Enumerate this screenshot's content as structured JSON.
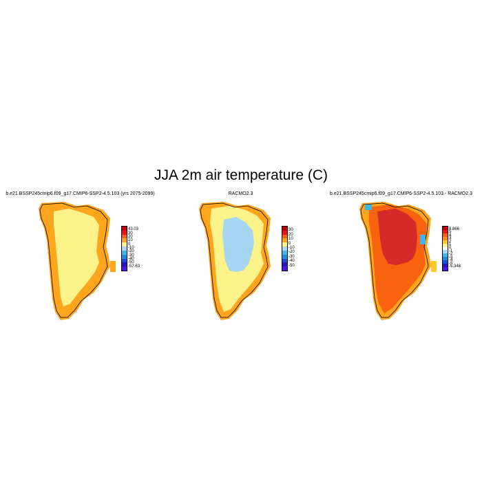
{
  "title": "JJA 2m air temperature (C)",
  "colors": {
    "land_mean": "#fbf28a",
    "coastal_band": "#fda51c",
    "ice_interior_racmo": "#a6d6f2",
    "diff_interior": "#d62a2a",
    "coastline": "#000000"
  },
  "panels": [
    {
      "id": "model",
      "title": "b.e21.BSSP245cmip6.f09_g17.CMIP6-SSP2-4.5.103 (yrs 2075-2099)",
      "colorbar": {
        "colors": [
          "#c00000",
          "#e8141b",
          "#f9620f",
          "#fda51c",
          "#fbf28a",
          "#a6d6f2",
          "#41b5ea",
          "#1e8ee0",
          "#1a4fd6",
          "#2a16b8",
          "#5512e0"
        ],
        "labels": [
          "43.03",
          "30",
          "20",
          "10",
          "0",
          "-10",
          "-20",
          "-30",
          "-40",
          "-50",
          "-57.63"
        ]
      }
    },
    {
      "id": "racmo",
      "title": "RACMO2.3",
      "colorbar": {
        "colors": [
          "#c00000",
          "#e8141b",
          "#f9620f",
          "#fda51c",
          "#fbf28a",
          "#a6d6f2",
          "#41b5ea",
          "#1e8ee0",
          "#1a4fd6",
          "#2a16b8",
          "#5512e0"
        ],
        "labels": [
          "30",
          "20",
          "10",
          "0",
          "-10",
          "-20",
          "-30",
          "-40",
          "-50"
        ]
      }
    },
    {
      "id": "diff",
      "title": "b.e21.BSSP245cmip6.f09_g17.CMIP6-SSP2-4.5.103 - RACMO2.3",
      "colorbar": {
        "colors": [
          "#c00000",
          "#e8141b",
          "#f9620f",
          "#fd8b1a",
          "#fdc82c",
          "#fbf28a",
          "#ffffff",
          "#a6d6f2",
          "#41b5ea",
          "#1e8ee0",
          "#1a4fd6",
          "#2a16b8",
          "#5512e0"
        ],
        "labels": [
          "8.866",
          "5",
          "4",
          "3",
          "2",
          "1",
          "0",
          "-1",
          "-2",
          "-3",
          "-4",
          "-5",
          "-5.348"
        ]
      }
    }
  ]
}
